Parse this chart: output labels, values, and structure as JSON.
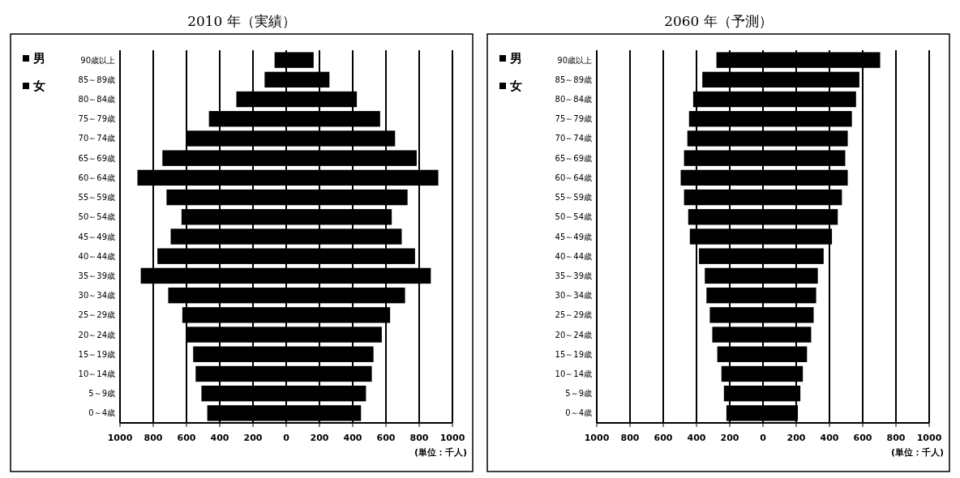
{
  "chart_data": [
    {
      "type": "bar",
      "title": "2010 年（実績）",
      "orientation": "horizontal",
      "stacked": true,
      "categories": [
        "90歳以上",
        "85～89歳",
        "80～84歳",
        "75～79歳",
        "70～74歳",
        "65～69歳",
        "60～64歳",
        "55～59歳",
        "50～54歳",
        "45～49歳",
        "40～44歳",
        "35～39歳",
        "30～34歳",
        "25～29歳",
        "20～24歳",
        "15～19歳",
        "10～14歳",
        "5～9歳",
        "0～4歳"
      ],
      "series": [
        {
          "name": "男",
          "color": "#000000",
          "values": [
            -70,
            -130,
            -300,
            -465,
            -600,
            -745,
            -895,
            -720,
            -630,
            -695,
            -775,
            -875,
            -710,
            -625,
            -595,
            -560,
            -545,
            -510,
            -475
          ]
        },
        {
          "name": "女",
          "color": "#000000",
          "values": [
            165,
            260,
            425,
            565,
            655,
            785,
            915,
            730,
            635,
            695,
            775,
            870,
            715,
            625,
            575,
            525,
            515,
            480,
            450
          ]
        }
      ],
      "xlim": [
        -1000,
        1000
      ],
      "xticks": [
        {
          "value": -1000,
          "label": "1000"
        },
        {
          "value": -800,
          "label": "800"
        },
        {
          "value": -600,
          "label": "600"
        },
        {
          "value": -400,
          "label": "400"
        },
        {
          "value": -200,
          "label": "200"
        },
        0,
        200,
        400,
        600,
        800,
        1000
      ],
      "grid": "x",
      "legend": "left",
      "annotations": [
        "(単位：千人)"
      ]
    },
    {
      "type": "bar",
      "title": "2060 年（予測）",
      "orientation": "horizontal",
      "stacked": true,
      "categories": [
        "90歳以上",
        "85～89歳",
        "80～84歳",
        "75～79歳",
        "70～74歳",
        "65～69歳",
        "60～64歳",
        "55～59歳",
        "50～54歳",
        "45～49歳",
        "40～44歳",
        "35～39歳",
        "30～34歳",
        "25～29歳",
        "20～24歳",
        "15～19歳",
        "10～14歳",
        "5～9歳",
        "0～4歳"
      ],
      "series": [
        {
          "name": "男",
          "color": "#000000",
          "values": [
            -280,
            -365,
            -420,
            -445,
            -455,
            -475,
            -495,
            -475,
            -450,
            -440,
            -385,
            -350,
            -340,
            -320,
            -305,
            -275,
            -250,
            -235,
            -220
          ]
        },
        {
          "name": "女",
          "color": "#000000",
          "values": [
            705,
            580,
            560,
            535,
            510,
            495,
            510,
            475,
            450,
            415,
            365,
            330,
            320,
            305,
            290,
            265,
            240,
            225,
            210
          ]
        }
      ],
      "xlim": [
        -1000,
        1000
      ],
      "xticks": [
        {
          "value": -1000,
          "label": "1000"
        },
        {
          "value": -800,
          "label": "800"
        },
        {
          "value": -600,
          "label": "600"
        },
        {
          "value": -400,
          "label": "400"
        },
        {
          "value": -200,
          "label": "200"
        },
        0,
        200,
        400,
        600,
        800,
        1000
      ],
      "grid": "x",
      "legend": "left",
      "annotations": [
        "(単位：千人)"
      ]
    }
  ]
}
